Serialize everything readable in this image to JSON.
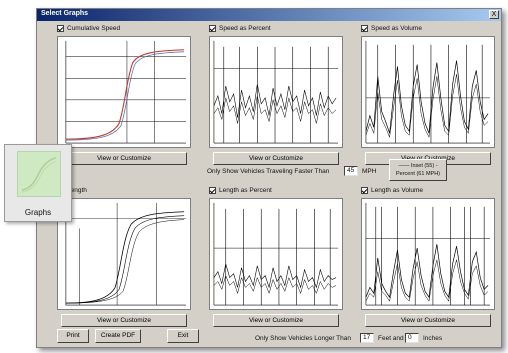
{
  "window": {
    "title": "Select Graphs",
    "close_label": "X"
  },
  "panels": [
    {
      "label": "Cumulative Speed",
      "checked": true,
      "button": "View or Customize"
    },
    {
      "label": "Speed as Percent",
      "checked": true,
      "button": "View or Customize"
    },
    {
      "label": "Speed as Volume",
      "checked": true,
      "button": "View or Customize"
    },
    {
      "label": "Length",
      "checked": true,
      "button": "View or Customize"
    },
    {
      "label": "Length as Percent",
      "checked": true,
      "button": "View or Customize"
    },
    {
      "label": "Length as Volume",
      "checked": true,
      "button": "View or Customize"
    }
  ],
  "speed_filter": {
    "label": "Only Show Vehicles Traveling Faster Than",
    "value": "45",
    "unit": "MPH"
  },
  "legend_button": {
    "line1": "—— Inset (55) -",
    "line2": "Percent (61 MPH)"
  },
  "length_filter": {
    "label": "Only Show Vehicles Longer Than",
    "feet_value": "17",
    "feet_label": "Feet and",
    "inches_value": "0",
    "inches_label": "Inches"
  },
  "footer": {
    "print": "Print",
    "create_pdf": "Create PDF",
    "exit": "Exit"
  },
  "tooltip": {
    "label": "Graphs"
  },
  "colors": {
    "titlebar_start": "#0a246a",
    "titlebar_end": "#a6caf0",
    "chart_curve_red": "#c0392b",
    "chart_curve_blue": "#4a62a8",
    "thumb_green": "#cfe9c2"
  }
}
